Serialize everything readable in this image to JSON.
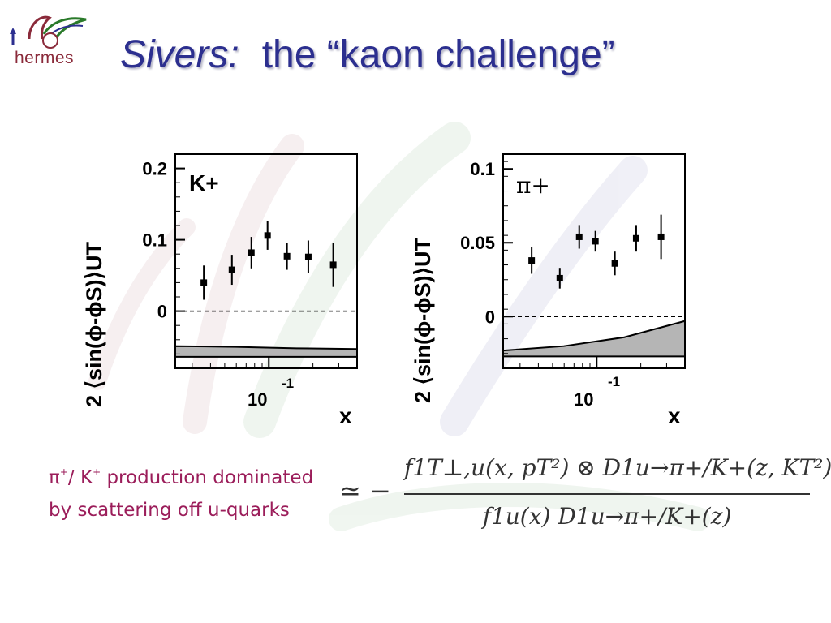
{
  "logo": {
    "text": "hermes"
  },
  "title": {
    "italic": "Sivers:",
    "rest": "the “kaon challenge”"
  },
  "chart_data": [
    {
      "type": "scatter",
      "panel_label": "K+",
      "ylabel": "2 ⟨sin(ϕ-ϕS)⟩UT",
      "xlabel": "x",
      "x_scale": "log",
      "xlim": [
        0.023,
        0.4
      ],
      "ylim": [
        -0.08,
        0.22
      ],
      "yticks": [
        "0.2",
        "0.1",
        "0"
      ],
      "ytick_values": [
        0.2,
        0.1,
        0
      ],
      "xtick_label": "10",
      "xtick_exponent": "-1",
      "x": [
        0.036,
        0.056,
        0.076,
        0.098,
        0.133,
        0.186,
        0.275
      ],
      "y": [
        0.04,
        0.058,
        0.082,
        0.106,
        0.077,
        0.076,
        0.065
      ],
      "yerr": [
        0.024,
        0.021,
        0.022,
        0.02,
        0.019,
        0.023,
        0.031
      ],
      "sys_band": {
        "upper": [
          -0.049,
          -0.05,
          -0.052,
          -0.053
        ],
        "lower": [
          -0.064,
          -0.064,
          -0.064,
          -0.064
        ]
      }
    },
    {
      "type": "scatter",
      "panel_label": "π+",
      "ylabel": "2 ⟨sin(ϕ-ϕS)⟩UT",
      "xlabel": "x",
      "x_scale": "log",
      "xlim": [
        0.023,
        0.4
      ],
      "ylim": [
        -0.035,
        0.11
      ],
      "yticks": [
        "0.1",
        "0.05",
        "0"
      ],
      "ytick_values": [
        0.1,
        0.05,
        0
      ],
      "xtick_label": "10",
      "xtick_exponent": "-1",
      "x": [
        0.036,
        0.056,
        0.076,
        0.098,
        0.133,
        0.186,
        0.275
      ],
      "y": [
        0.038,
        0.026,
        0.054,
        0.051,
        0.036,
        0.053,
        0.054
      ],
      "yerr": [
        0.009,
        0.007,
        0.008,
        0.007,
        0.008,
        0.009,
        0.015
      ],
      "sys_band": {
        "upper": [
          -0.023,
          -0.02,
          -0.014,
          -0.003
        ],
        "lower": [
          -0.027,
          -0.027,
          -0.027,
          -0.027
        ]
      }
    }
  ],
  "caption": {
    "pi": "π",
    "plus1": "+",
    "mid": "/ K",
    "plus2": "+",
    "line1_rest": " production dominated",
    "line2": "by scattering off u-quarks"
  },
  "formula": {
    "approx": "≃ −",
    "numerator": "f1T⊥,u(x, pT²) ⊗ D1u→π+/K+(z, KT²)",
    "denominator": "f1u(x) D1u→π+/K+(z)"
  },
  "colors": {
    "title": "#2c2f8f",
    "caption": "#9b1d5a",
    "band": "#b5b5b5"
  }
}
